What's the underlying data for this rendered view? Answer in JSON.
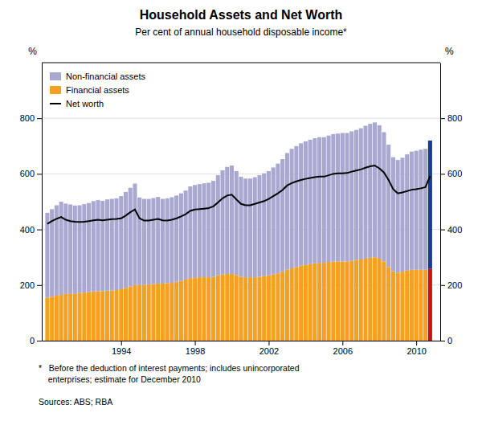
{
  "chart_data": {
    "type": "bar",
    "title": "Household Assets and Net Worth",
    "subtitle": "Per cent of annual household disposable income*",
    "ylabel": "%",
    "y2label": "%",
    "footnote": "*   Before the deduction of interest payments; includes unincorporated\n    enterprises; estimate for December 2010",
    "sources": "Sources: ABS; RBA",
    "stacked": true,
    "grid": true,
    "legend": "upper left",
    "xlim": [
      1989.7,
      2011.3
    ],
    "xticks": [
      1994,
      1998,
      2002,
      2006,
      2010
    ],
    "ylim": [
      0,
      1000
    ],
    "yticks": [
      0,
      200,
      400,
      600,
      800
    ],
    "y2lim": [
      0,
      1000
    ],
    "y2ticks": [
      0,
      200,
      400,
      600,
      800
    ],
    "x": [
      1990.0,
      1990.25,
      1990.5,
      1990.75,
      1991.0,
      1991.25,
      1991.5,
      1991.75,
      1992.0,
      1992.25,
      1992.5,
      1992.75,
      1993.0,
      1993.25,
      1993.5,
      1993.75,
      1994.0,
      1994.25,
      1994.5,
      1994.75,
      1995.0,
      1995.25,
      1995.5,
      1995.75,
      1996.0,
      1996.25,
      1996.5,
      1996.75,
      1997.0,
      1997.25,
      1997.5,
      1997.75,
      1998.0,
      1998.25,
      1998.5,
      1998.75,
      1999.0,
      1999.25,
      1999.5,
      1999.75,
      2000.0,
      2000.25,
      2000.5,
      2000.75,
      2001.0,
      2001.25,
      2001.5,
      2001.75,
      2002.0,
      2002.25,
      2002.5,
      2002.75,
      2003.0,
      2003.25,
      2003.5,
      2003.75,
      2004.0,
      2004.25,
      2004.5,
      2004.75,
      2005.0,
      2005.25,
      2005.5,
      2005.75,
      2006.0,
      2006.25,
      2006.5,
      2006.75,
      2007.0,
      2007.25,
      2007.5,
      2007.75,
      2008.0,
      2008.25,
      2008.5,
      2008.75,
      2009.0,
      2009.25,
      2009.5,
      2009.75,
      2010.0,
      2010.25,
      2010.5,
      2010.75
    ],
    "series": [
      {
        "name": "Financial assets",
        "type": "bar",
        "color": "#f5a020",
        "colors": [
          "#f5a020",
          "#f5a020",
          "#f5a020",
          "#f5a020",
          "#f5a020",
          "#f5a020",
          "#f5a020",
          "#f5a020",
          "#f5a020",
          "#f5a020",
          "#f5a020",
          "#f5a020",
          "#f5a020",
          "#f5a020",
          "#f5a020",
          "#f5a020",
          "#f5a020",
          "#f5a020",
          "#f5a020",
          "#f5a020",
          "#f5a020",
          "#f5a020",
          "#f5a020",
          "#f5a020",
          "#f5a020",
          "#f5a020",
          "#f5a020",
          "#f5a020",
          "#f5a020",
          "#f5a020",
          "#f5a020",
          "#f5a020",
          "#f5a020",
          "#f5a020",
          "#f5a020",
          "#f5a020",
          "#f5a020",
          "#f5a020",
          "#f5a020",
          "#f5a020",
          "#f5a020",
          "#f5a020",
          "#f5a020",
          "#f5a020",
          "#f5a020",
          "#f5a020",
          "#f5a020",
          "#f5a020",
          "#f5a020",
          "#f5a020",
          "#f5a020",
          "#f5a020",
          "#f5a020",
          "#f5a020",
          "#f5a020",
          "#f5a020",
          "#f5a020",
          "#f5a020",
          "#f5a020",
          "#f5a020",
          "#f5a020",
          "#f5a020",
          "#f5a020",
          "#f5a020",
          "#f5a020",
          "#f5a020",
          "#f5a020",
          "#f5a020",
          "#f5a020",
          "#f5a020",
          "#f5a020",
          "#f5a020",
          "#f5a020",
          "#f5a020",
          "#f5a020",
          "#f5a020",
          "#f5a020",
          "#f5a020",
          "#f5a020",
          "#f5a020",
          "#f5a020",
          "#f5a020",
          "#f5a020",
          "#cc1111"
        ],
        "values": [
          155,
          158,
          162,
          165,
          168,
          170,
          168,
          172,
          173,
          175,
          177,
          178,
          178,
          180,
          180,
          182,
          185,
          190,
          195,
          200,
          200,
          200,
          202,
          203,
          205,
          205,
          207,
          208,
          212,
          215,
          220,
          225,
          225,
          228,
          228,
          228,
          230,
          235,
          238,
          240,
          240,
          235,
          230,
          228,
          228,
          228,
          230,
          232,
          235,
          238,
          242,
          248,
          255,
          260,
          265,
          270,
          272,
          275,
          278,
          280,
          280,
          283,
          285,
          285,
          285,
          285,
          288,
          290,
          292,
          295,
          298,
          300,
          295,
          285,
          265,
          250,
          245,
          248,
          252,
          255,
          255,
          255,
          255,
          258
        ]
      },
      {
        "name": "Non-financial assets",
        "type": "bar",
        "color": "#a8a8d0",
        "colors": [
          "#a8a8d0",
          "#a8a8d0",
          "#a8a8d0",
          "#a8a8d0",
          "#a8a8d0",
          "#a8a8d0",
          "#a8a8d0",
          "#a8a8d0",
          "#a8a8d0",
          "#a8a8d0",
          "#a8a8d0",
          "#a8a8d0",
          "#a8a8d0",
          "#a8a8d0",
          "#a8a8d0",
          "#a8a8d0",
          "#a8a8d0",
          "#a8a8d0",
          "#a8a8d0",
          "#a8a8d0",
          "#a8a8d0",
          "#a8a8d0",
          "#a8a8d0",
          "#a8a8d0",
          "#a8a8d0",
          "#a8a8d0",
          "#a8a8d0",
          "#a8a8d0",
          "#a8a8d0",
          "#a8a8d0",
          "#a8a8d0",
          "#a8a8d0",
          "#a8a8d0",
          "#a8a8d0",
          "#a8a8d0",
          "#a8a8d0",
          "#a8a8d0",
          "#a8a8d0",
          "#a8a8d0",
          "#a8a8d0",
          "#a8a8d0",
          "#a8a8d0",
          "#a8a8d0",
          "#a8a8d0",
          "#a8a8d0",
          "#a8a8d0",
          "#a8a8d0",
          "#a8a8d0",
          "#a8a8d0",
          "#a8a8d0",
          "#a8a8d0",
          "#a8a8d0",
          "#a8a8d0",
          "#a8a8d0",
          "#a8a8d0",
          "#a8a8d0",
          "#a8a8d0",
          "#a8a8d0",
          "#a8a8d0",
          "#a8a8d0",
          "#a8a8d0",
          "#a8a8d0",
          "#a8a8d0",
          "#a8a8d0",
          "#a8a8d0",
          "#a8a8d0",
          "#a8a8d0",
          "#a8a8d0",
          "#a8a8d0",
          "#a8a8d0",
          "#a8a8d0",
          "#a8a8d0",
          "#a8a8d0",
          "#a8a8d0",
          "#a8a8d0",
          "#a8a8d0",
          "#a8a8d0",
          "#a8a8d0",
          "#a8a8d0",
          "#a8a8d0",
          "#a8a8d0",
          "#a8a8d0",
          "#a8a8d0",
          "#1a3a8f"
        ],
        "values": [
          305,
          315,
          325,
          335,
          325,
          320,
          318,
          315,
          318,
          320,
          325,
          328,
          325,
          328,
          330,
          330,
          335,
          345,
          355,
          365,
          315,
          310,
          308,
          310,
          312,
          305,
          305,
          308,
          310,
          315,
          320,
          330,
          335,
          335,
          338,
          340,
          345,
          360,
          375,
          385,
          390,
          375,
          360,
          355,
          355,
          360,
          365,
          370,
          375,
          385,
          395,
          405,
          420,
          430,
          435,
          440,
          445,
          448,
          450,
          452,
          452,
          455,
          458,
          460,
          462,
          462,
          465,
          468,
          472,
          478,
          482,
          485,
          480,
          465,
          440,
          410,
          405,
          410,
          418,
          425,
          428,
          432,
          435,
          462
        ]
      },
      {
        "name": "Net worth",
        "type": "line",
        "color": "#000000",
        "values": [
          420,
          430,
          438,
          445,
          435,
          430,
          428,
          427,
          428,
          430,
          433,
          435,
          433,
          435,
          437,
          438,
          440,
          450,
          462,
          472,
          440,
          432,
          432,
          435,
          438,
          433,
          432,
          435,
          440,
          447,
          455,
          467,
          472,
          473,
          475,
          477,
          483,
          497,
          512,
          522,
          525,
          508,
          492,
          487,
          487,
          492,
          497,
          502,
          510,
          520,
          530,
          542,
          558,
          567,
          573,
          578,
          582,
          585,
          588,
          590,
          590,
          595,
          600,
          602,
          602,
          603,
          608,
          612,
          616,
          622,
          627,
          630,
          620,
          605,
          578,
          545,
          530,
          533,
          538,
          543,
          545,
          548,
          552,
          592
        ]
      }
    ]
  }
}
